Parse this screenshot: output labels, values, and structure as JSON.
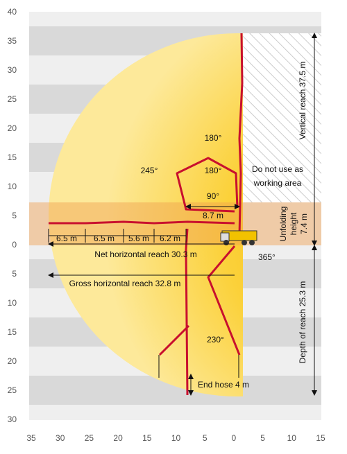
{
  "y_axis_labels": [
    40,
    35,
    30,
    25,
    20,
    15,
    10,
    5,
    0,
    5,
    10,
    15,
    20,
    25,
    30
  ],
  "x_axis_labels": [
    35,
    30,
    25,
    20,
    15,
    10,
    5,
    0,
    5,
    10,
    15
  ],
  "annotations": {
    "angle_top": "180°",
    "angle_left": "245°",
    "angle_mid": "180°",
    "angle_low": "90°",
    "inner_reach": "8.7 m",
    "no_use_line1": "Do not use as",
    "no_use_line2": "working area",
    "vertical_reach": "Vertical reach 37.5 m",
    "unfolding_line1": "Unfolding",
    "unfolding_line2": "height",
    "unfolding_line3": "7.4 m",
    "segments": [
      "6.5 m",
      "6.5 m",
      "5.6 m",
      "6.2 m"
    ],
    "net_reach": "Net horizontal reach 30.3 m",
    "slew": "365°",
    "gross_reach": "Gross horizontal reach 32.8 m",
    "angle_bottom": "230°",
    "depth_reach": "Depth of reach 25.3 m",
    "end_hose": "End hose 4 m"
  }
}
